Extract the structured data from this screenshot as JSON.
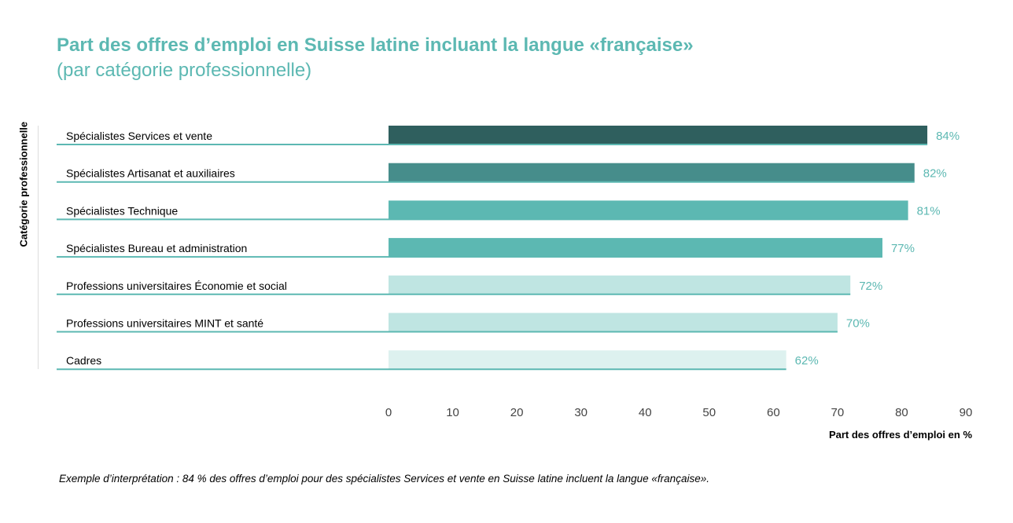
{
  "chart_data": {
    "type": "bar",
    "orientation": "horizontal",
    "title": "Part des offres d’emploi en Suisse latine incluant la langue «française»",
    "subtitle": "(par catégorie professionnelle)",
    "ylabel": "Catégorie professionnelle",
    "xlabel": "Part des offres d’emploi en %",
    "categories": [
      "Spécialistes Services et vente",
      "Spécialistes Artisanat et auxiliaires",
      "Spécialistes Technique",
      "Spécialistes Bureau et administration",
      "Professions universitaires Économie et social",
      "Professions universitaires MINT et santé",
      "Cadres"
    ],
    "values": [
      84,
      82,
      81,
      77,
      72,
      70,
      62
    ],
    "data_labels": [
      "84%",
      "82%",
      "81%",
      "77%",
      "72%",
      "70%",
      "62%"
    ],
    "colors": [
      "#2f5f5e",
      "#468d8b",
      "#5cb8b2",
      "#5cb8b2",
      "#bfe5e2",
      "#bfe5e2",
      "#ddf1ef"
    ],
    "xlim": [
      0,
      90
    ],
    "xticks": [
      0,
      10,
      20,
      30,
      40,
      50,
      60,
      70,
      80,
      90
    ],
    "grid": false,
    "note": "Exemple d’interprétation : 84 % des offres d’emploi pour des spécialistes Services et vente en Suisse latine incluent la langue «française»."
  }
}
